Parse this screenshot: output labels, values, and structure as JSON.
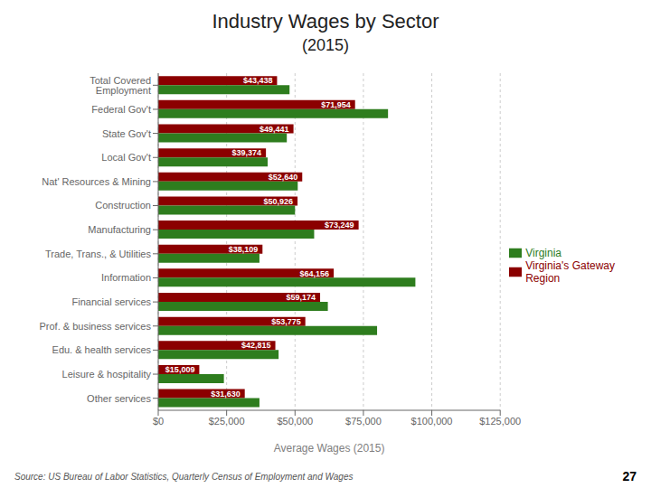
{
  "chart_data": {
    "type": "bar",
    "orientation": "horizontal",
    "title": "Industry Wages by Sector",
    "subtitle": "(2015)",
    "xlabel": "Average Wages (2015)",
    "categories": [
      "Total Covered Employment",
      "Federal Gov't",
      "State Gov't",
      "Local Gov't",
      "Nat' Resources & Mining",
      "Construction",
      "Manufacturing",
      "Trade, Trans., & Utilities",
      "Information",
      "Financial services",
      "Prof. & business services",
      "Edu. & health services",
      "Leisure & hospitality",
      "Other services"
    ],
    "series": [
      {
        "name": "Virginia's Gateway\nRegion",
        "color": "#8B0000",
        "values": [
          43438,
          71954,
          49441,
          39374,
          52640,
          50926,
          73249,
          38109,
          64156,
          59174,
          53775,
          42815,
          15009,
          31630
        ],
        "data_labels": true,
        "value_labels": [
          "$43,438",
          "$71,954",
          "$49,441",
          "$39,374",
          "$52,640",
          "$50,926",
          "$73,249",
          "$38,109",
          "$64,156",
          "$59,174",
          "$53,775",
          "$42,815",
          "$15,009",
          "$31,630"
        ]
      },
      {
        "name": "Virginia",
        "color": "#2E7D1E",
        "values": [
          48000,
          84000,
          47000,
          40000,
          51000,
          50000,
          57000,
          37000,
          94000,
          62000,
          80000,
          44000,
          24000,
          37000
        ]
      }
    ],
    "xlim": [
      0,
      125000
    ],
    "xticks": [
      {
        "value": 0,
        "label": "$0"
      },
      {
        "value": 25000,
        "label": "$25,000"
      },
      {
        "value": 50000,
        "label": "$50,000"
      },
      {
        "value": 75000,
        "label": "$75,000"
      },
      {
        "value": 100000,
        "label": "$100,000"
      },
      {
        "value": 125000,
        "label": "$125,000"
      }
    ],
    "grid": true,
    "legend": "right",
    "annotations": [
      "Source: US Bureau of Labor Statistics, Quarterly Census of Employment and Wages",
      "27"
    ]
  }
}
